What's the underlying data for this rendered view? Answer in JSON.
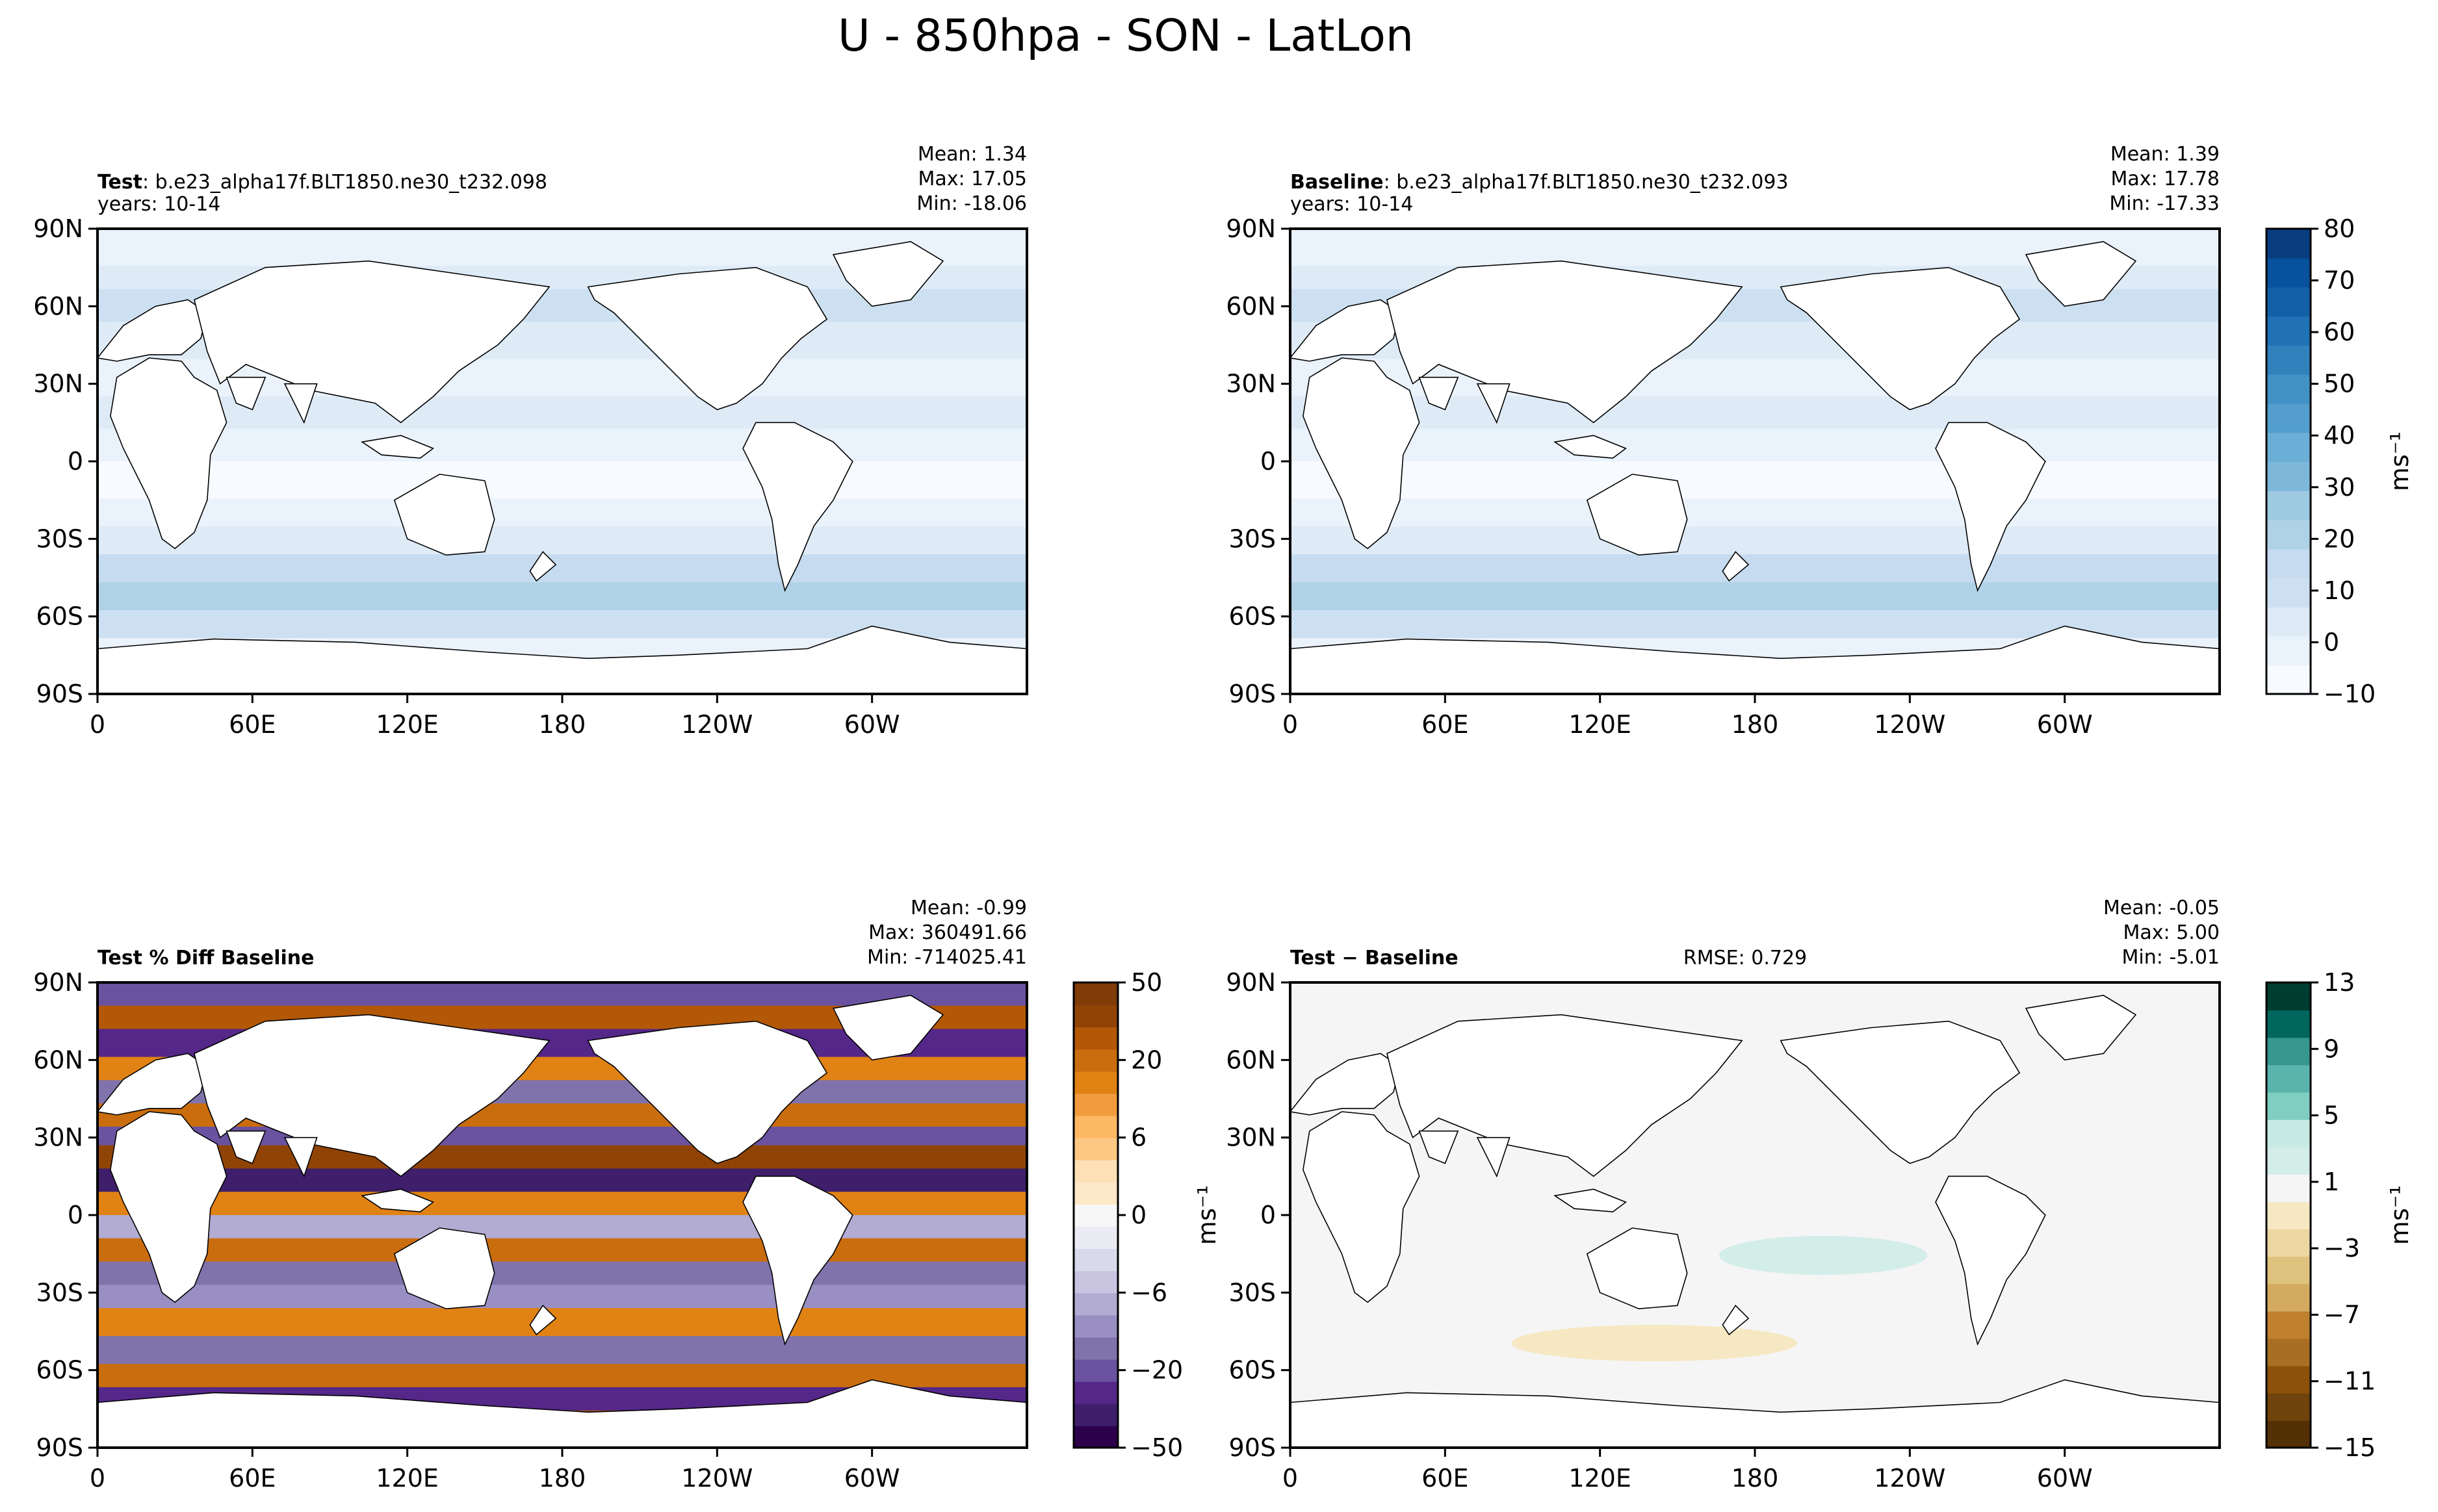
{
  "figure_title": "U - 850hpa - SON - LatLon",
  "colors": {
    "land": "#ffffff",
    "frame": "#000000",
    "ref_scale": [
      "#f7fbff",
      "#eaf2fb",
      "#deebf7",
      "#cde0f1",
      "#c6dbef",
      "#b0d2e7",
      "#9ecae1",
      "#7db8da",
      "#6baed6",
      "#539ecd",
      "#4292c6",
      "#3181bd",
      "#2171b5",
      "#1460a8",
      "#08519c",
      "#083d7f"
    ],
    "diff_scale_neg": [
      "#2d004b",
      "#3f1f6b",
      "#542788",
      "#6a52a0",
      "#8073ac",
      "#998fc2",
      "#b2abd2",
      "#c9c5e1",
      "#d8daeb",
      "#ebebf3"
    ],
    "diff_scale_pos": [
      "#f7f7f7",
      "#fde8c8",
      "#fee0b6",
      "#fdc884",
      "#fdb863",
      "#f09c3e",
      "#e08214",
      "#c96d0e",
      "#b35806",
      "#8f4406",
      "#7f3b08"
    ],
    "anom_scale": [
      "#543005",
      "#6f430b",
      "#8c510a",
      "#a86f23",
      "#bf812d",
      "#d4aa60",
      "#dfc27d",
      "#ebd6a4",
      "#f6e8c3",
      "#f5f5f5",
      "#d3ede9",
      "#c7eae5",
      "#80cdc1",
      "#5ab4ac",
      "#35978f",
      "#01665e",
      "#003c30"
    ]
  },
  "panels": [
    {
      "id": "test",
      "label_bold": "Test",
      "label_rest": ": b.e23_alpha17f.BLT1850.ne30_t232.098",
      "years": "years: 10-14",
      "stats": {
        "mean": "Mean:  1.34",
        "max": "Max: 17.05",
        "min": "Min: -18.06"
      },
      "rmse": "",
      "field": "ref"
    },
    {
      "id": "baseline",
      "label_bold": "Baseline",
      "label_rest": ": b.e23_alpha17f.BLT1850.ne30_t232.093",
      "years": "years: 10-14",
      "stats": {
        "mean": "Mean:  1.39",
        "max": "Max: 17.78",
        "min": "Min: -17.33"
      },
      "rmse": "",
      "field": "ref"
    },
    {
      "id": "pctdiff",
      "label_bold": "Test % Diff Baseline",
      "label_rest": "",
      "years": "",
      "stats": {
        "mean": "Mean: -0.99",
        "max": "Max: 360491.66",
        "min": "Min: -714025.41"
      },
      "rmse": "",
      "field": "pct"
    },
    {
      "id": "diff",
      "label_bold": "Test − Baseline",
      "label_rest": "",
      "years": "",
      "stats": {
        "mean": "Mean: -0.05",
        "max": "Max:  5.00",
        "min": "Min: -5.01"
      },
      "rmse": "RMSE: 0.729",
      "field": "anom"
    }
  ],
  "axes": {
    "lat_ticks": [
      "90N",
      "60N",
      "30N",
      "0",
      "30S",
      "60S",
      "90S"
    ],
    "lon_ticks": [
      "0",
      "60E",
      "120E",
      "180",
      "120W",
      "60W"
    ]
  },
  "colorbars": {
    "ref": {
      "ticks": [
        "−10",
        "0",
        "10",
        "20",
        "30",
        "40",
        "50",
        "60",
        "70",
        "80"
      ],
      "range": [
        -10,
        85
      ],
      "unit": "ms⁻¹"
    },
    "pct": {
      "ticks": [
        "−50",
        "−20",
        "−6",
        "0",
        "6",
        "20",
        "50"
      ],
      "unit": "ms⁻¹"
    },
    "anom": {
      "ticks": [
        "−15",
        "−11",
        "−7",
        "−3",
        "1",
        "5",
        "9",
        "13"
      ],
      "range": [
        -15,
        13
      ],
      "unit": "ms⁻¹"
    }
  }
}
